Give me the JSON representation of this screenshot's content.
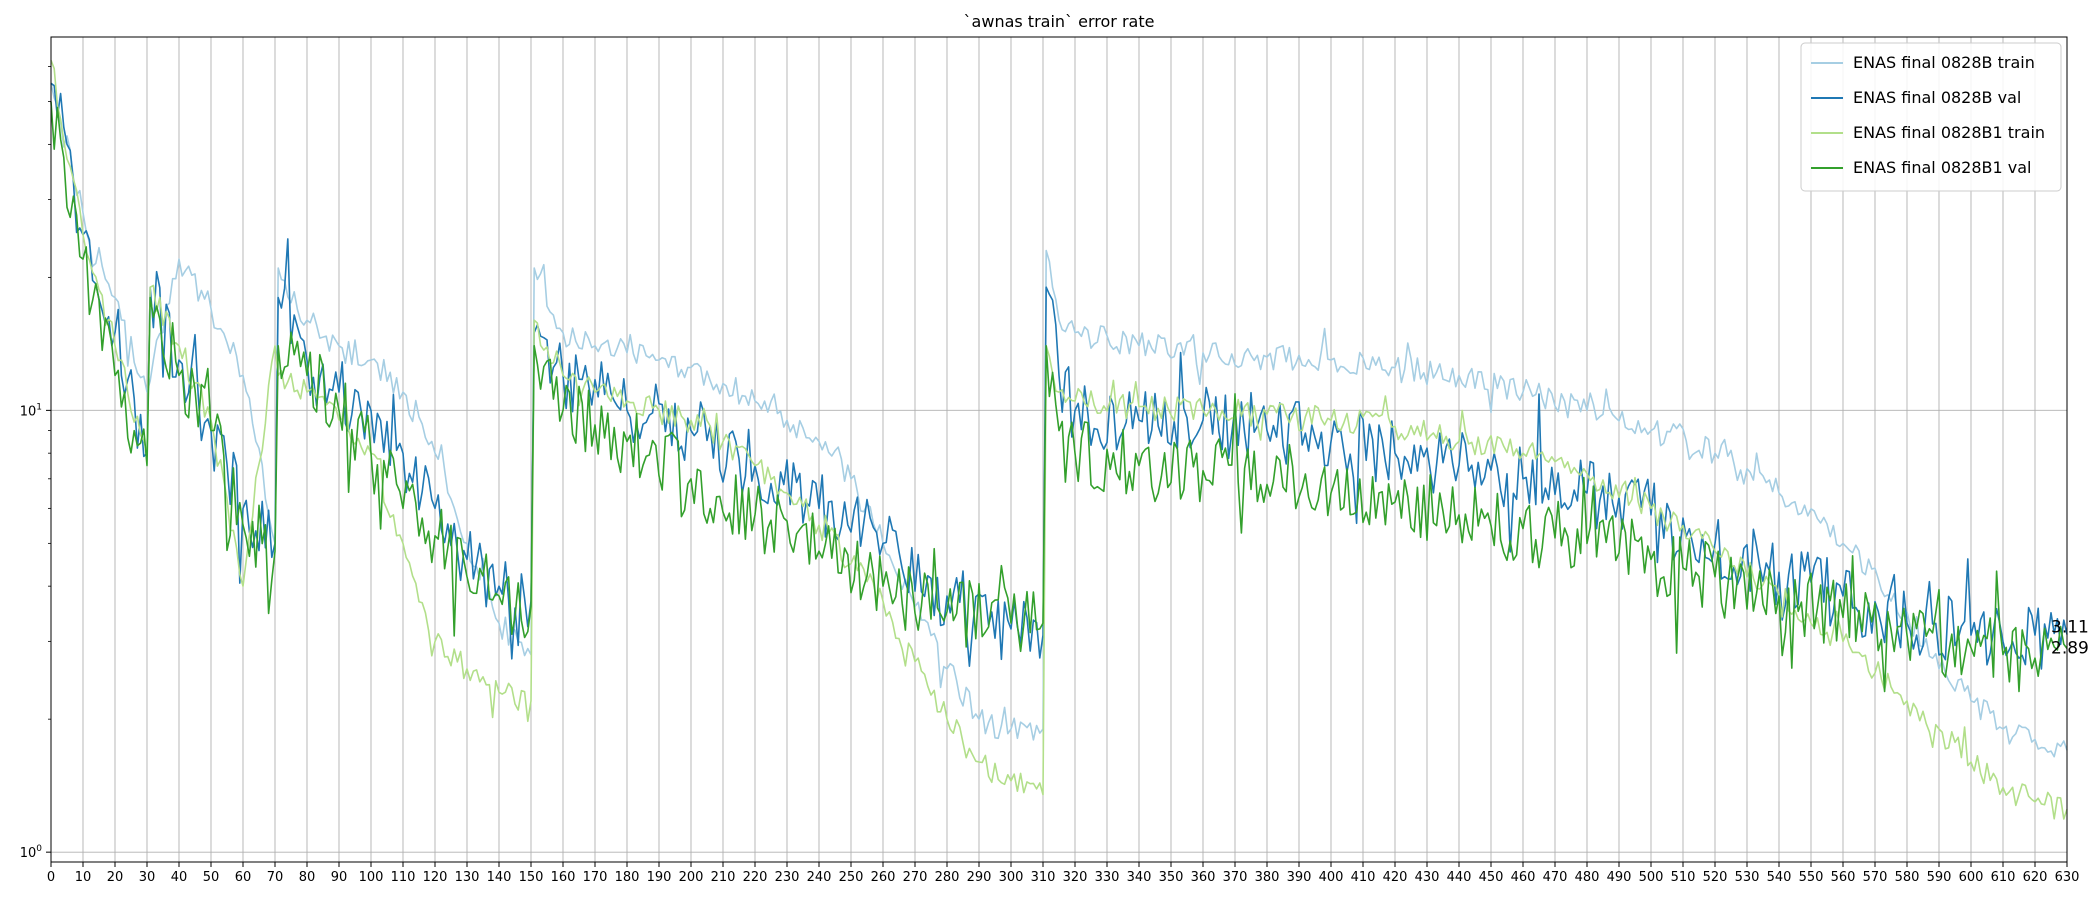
{
  "chart_data": {
    "type": "line",
    "title": "`awnas train` error rate",
    "xlabel": "",
    "ylabel": "",
    "y_scale": "log",
    "xlim": [
      0,
      630
    ],
    "ylim": [
      0.95,
      70
    ],
    "x_ticks": [
      0,
      10,
      20,
      30,
      40,
      50,
      60,
      70,
      80,
      90,
      100,
      110,
      120,
      130,
      140,
      150,
      160,
      170,
      180,
      190,
      200,
      210,
      220,
      230,
      240,
      250,
      260,
      270,
      280,
      290,
      300,
      310,
      320,
      330,
      340,
      350,
      360,
      370,
      380,
      390,
      400,
      410,
      420,
      430,
      440,
      450,
      460,
      470,
      480,
      490,
      500,
      510,
      520,
      530,
      540,
      550,
      560,
      570,
      580,
      590,
      600,
      610,
      620,
      630
    ],
    "y_ticks": [
      {
        "value": 1,
        "base": "10",
        "exp": "0"
      },
      {
        "value": 10,
        "base": "10",
        "exp": "1"
      }
    ],
    "grid": true,
    "legend_position": "top-right",
    "end_labels": [
      {
        "text": "3.11",
        "value": 3.11
      },
      {
        "text": "2.89",
        "value": 2.89
      }
    ],
    "series": [
      {
        "name": "ENAS final 0828B train",
        "color": "#a6cee3",
        "noise": 0.03,
        "x": [
          0,
          10,
          20,
          30,
          40,
          50,
          60,
          70,
          71,
          80,
          90,
          100,
          110,
          120,
          130,
          140,
          150,
          151,
          160,
          170,
          180,
          190,
          200,
          210,
          220,
          230,
          240,
          250,
          260,
          270,
          280,
          290,
          300,
          310,
          311,
          315,
          320,
          340,
          360,
          380,
          400,
          420,
          440,
          460,
          480,
          500,
          520,
          540,
          560,
          580,
          590,
          600,
          610,
          620,
          630
        ],
        "y": [
          55,
          28,
          18,
          11,
          22,
          17,
          12,
          5,
          21,
          16,
          14,
          13,
          11,
          8,
          5,
          3.3,
          2.8,
          21,
          15,
          14,
          13.5,
          13,
          12.5,
          11.5,
          10.5,
          9.5,
          8.5,
          7,
          5,
          3.6,
          2.6,
          2,
          1.9,
          1.9,
          23,
          16,
          15,
          14,
          13.5,
          13.2,
          13,
          12.5,
          12,
          11,
          10,
          9,
          8,
          6.5,
          5,
          3.5,
          2.6,
          2.2,
          1.9,
          1.8,
          1.7
        ]
      },
      {
        "name": "ENAS final 0828B val",
        "color": "#1f78b4",
        "noise": 0.08,
        "x": [
          0,
          5,
          10,
          20,
          30,
          31,
          40,
          50,
          60,
          70,
          71,
          80,
          90,
          100,
          110,
          120,
          130,
          140,
          150,
          151,
          160,
          180,
          200,
          220,
          240,
          260,
          280,
          300,
          310,
          311,
          315,
          320,
          340,
          360,
          380,
          400,
          420,
          440,
          460,
          480,
          500,
          520,
          540,
          560,
          580,
          600,
          610,
          620,
          630
        ],
        "y": [
          55,
          40,
          25,
          15,
          8,
          19,
          13,
          9,
          6,
          5,
          18,
          13,
          11,
          10,
          8,
          6,
          4.6,
          4,
          3.7,
          15,
          12,
          10,
          9,
          7.5,
          6,
          5,
          3.8,
          3.2,
          3.1,
          19,
          12,
          10,
          9.5,
          9.5,
          9,
          8.5,
          8,
          7.5,
          7,
          6.5,
          5.8,
          5,
          4.3,
          3.8,
          3.3,
          3.1,
          3.0,
          3.1,
          3.11
        ]
      },
      {
        "name": "ENAS final 0828B1 train",
        "color": "#b2df8a",
        "noise": 0.03,
        "x": [
          0,
          10,
          20,
          30,
          31,
          40,
          50,
          60,
          70,
          71,
          80,
          90,
          100,
          110,
          120,
          130,
          140,
          150,
          151,
          160,
          170,
          180,
          190,
          200,
          210,
          220,
          230,
          240,
          250,
          260,
          270,
          280,
          290,
          300,
          310,
          311,
          315,
          320,
          340,
          360,
          380,
          400,
          420,
          440,
          460,
          480,
          500,
          520,
          540,
          560,
          580,
          590,
          600,
          610,
          620,
          630
        ],
        "y": [
          62,
          25,
          14,
          8,
          19,
          14,
          9.5,
          4,
          14,
          12,
          11,
          9.5,
          8,
          5,
          3,
          2.6,
          2.3,
          2.2,
          16,
          12,
          11,
          10.5,
          10,
          9.5,
          8.5,
          7.5,
          6.5,
          5.5,
          4.5,
          3.7,
          2.7,
          2,
          1.6,
          1.45,
          1.35,
          14,
          11,
          10.5,
          10.2,
          10,
          9.8,
          9.5,
          9.2,
          8.5,
          8,
          7.2,
          6,
          4.8,
          3.8,
          3,
          2.2,
          1.9,
          1.6,
          1.4,
          1.3,
          1.25
        ]
      },
      {
        "name": "ENAS final 0828B1 val",
        "color": "#33a02c",
        "noise": 0.08,
        "x": [
          0,
          10,
          20,
          30,
          31,
          40,
          50,
          60,
          70,
          71,
          80,
          90,
          100,
          110,
          120,
          130,
          140,
          150,
          151,
          160,
          180,
          200,
          220,
          240,
          260,
          280,
          300,
          310,
          311,
          315,
          320,
          340,
          360,
          380,
          400,
          420,
          440,
          460,
          480,
          500,
          520,
          540,
          560,
          580,
          600,
          610,
          620,
          630
        ],
        "y": [
          50,
          22,
          12,
          7.5,
          18,
          12,
          9,
          5.5,
          4.8,
          14,
          12,
          10,
          8,
          6,
          5.2,
          4.2,
          3.8,
          3.6,
          14,
          10,
          8.5,
          7,
          5.8,
          4.8,
          4,
          3.5,
          3.3,
          3.3,
          14,
          9,
          8,
          7.5,
          7.3,
          6.8,
          6.5,
          6.2,
          5.8,
          5.4,
          5,
          4.6,
          4.2,
          3.8,
          3.4,
          3.1,
          2.9,
          2.8,
          2.75,
          2.89
        ]
      }
    ]
  }
}
